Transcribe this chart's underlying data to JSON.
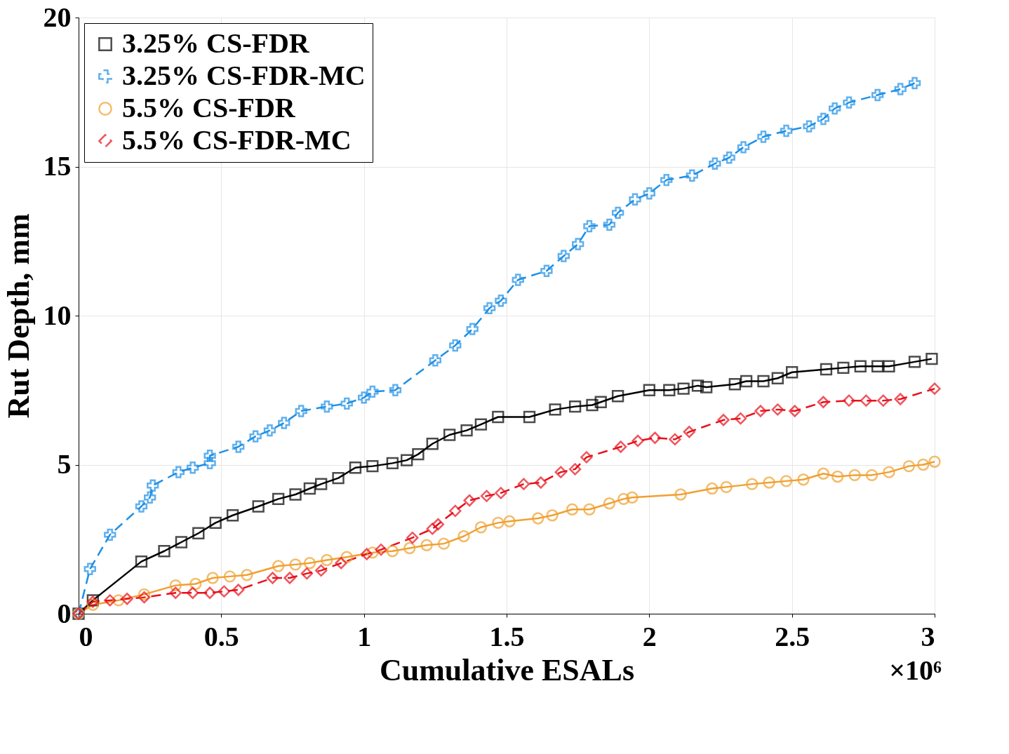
{
  "chart_data": {
    "type": "line",
    "xlabel": "Cumulative ESALs",
    "ylabel": "Rut Depth, mm",
    "annotations": [
      "×10⁶"
    ],
    "xlim": [
      0,
      3
    ],
    "ylim": [
      0,
      20
    ],
    "xticks": [
      0,
      0.5,
      1,
      1.5,
      2,
      2.5,
      3
    ],
    "yticks": [
      0,
      5,
      10,
      15,
      20
    ],
    "grid": true,
    "legend": "top left",
    "series": [
      {
        "name": "3.25% CS-FDR",
        "color": "#000000",
        "marker": "square",
        "line_style": "solid",
        "x": [
          0,
          0.05,
          0.22,
          0.3,
          0.36,
          0.42,
          0.48,
          0.54,
          0.63,
          0.7,
          0.76,
          0.81,
          0.85,
          0.91,
          0.97,
          1.03,
          1.1,
          1.15,
          1.19,
          1.24,
          1.3,
          1.36,
          1.41,
          1.47,
          1.58,
          1.67,
          1.74,
          1.8,
          1.83,
          1.89,
          2.0,
          2.07,
          2.12,
          2.17,
          2.2,
          2.3,
          2.34,
          2.4,
          2.45,
          2.5,
          2.62,
          2.68,
          2.74,
          2.8,
          2.84,
          2.93,
          2.99
        ],
        "values": [
          0,
          0.45,
          1.75,
          2.1,
          2.4,
          2.7,
          3.05,
          3.3,
          3.6,
          3.85,
          4.0,
          4.2,
          4.35,
          4.55,
          4.9,
          4.95,
          5.05,
          5.15,
          5.35,
          5.7,
          6.0,
          6.15,
          6.35,
          6.6,
          6.6,
          6.85,
          6.95,
          7.0,
          7.1,
          7.3,
          7.5,
          7.5,
          7.55,
          7.65,
          7.6,
          7.7,
          7.8,
          7.8,
          7.9,
          8.1,
          8.2,
          8.25,
          8.3,
          8.3,
          8.3,
          8.45,
          8.55
        ]
      },
      {
        "name": "3.25% CS-FDR-MC",
        "color": "#1e90e6",
        "marker": "cross",
        "line_style": "dashed",
        "x": [
          0,
          0.04,
          0.11,
          0.22,
          0.25,
          0.26,
          0.35,
          0.4,
          0.46,
          0.46,
          0.56,
          0.62,
          0.67,
          0.72,
          0.78,
          0.87,
          0.94,
          1.0,
          1.03,
          1.11,
          1.25,
          1.32,
          1.38,
          1.44,
          1.48,
          1.54,
          1.64,
          1.7,
          1.75,
          1.79,
          1.86,
          1.89,
          1.95,
          2.0,
          2.06,
          2.15,
          2.23,
          2.28,
          2.33,
          2.4,
          2.48,
          2.56,
          2.61,
          2.65,
          2.7,
          2.8,
          2.88,
          2.93
        ],
        "values": [
          0,
          1.5,
          2.65,
          3.6,
          3.9,
          4.3,
          4.75,
          4.9,
          5.05,
          5.3,
          5.6,
          5.95,
          6.15,
          6.4,
          6.8,
          6.95,
          7.05,
          7.25,
          7.45,
          7.5,
          8.5,
          9.0,
          9.55,
          10.25,
          10.5,
          11.2,
          11.5,
          12.0,
          12.4,
          13.0,
          13.05,
          13.45,
          13.9,
          14.1,
          14.55,
          14.7,
          15.1,
          15.3,
          15.65,
          16.0,
          16.2,
          16.35,
          16.6,
          16.95,
          17.15,
          17.4,
          17.6,
          17.8
        ]
      },
      {
        "name": "5.5% CS-FDR",
        "color": "#f0a030",
        "marker": "circle",
        "line_style": "solid",
        "x": [
          0,
          0.05,
          0.14,
          0.23,
          0.34,
          0.41,
          0.47,
          0.53,
          0.59,
          0.7,
          0.76,
          0.81,
          0.87,
          0.94,
          1.03,
          1.1,
          1.16,
          1.22,
          1.28,
          1.35,
          1.41,
          1.47,
          1.51,
          1.61,
          1.66,
          1.73,
          1.79,
          1.86,
          1.91,
          1.94,
          2.11,
          2.22,
          2.27,
          2.36,
          2.42,
          2.48,
          2.54,
          2.61,
          2.66,
          2.72,
          2.78,
          2.84,
          2.91,
          2.96,
          3.0
        ],
        "values": [
          0,
          0.3,
          0.45,
          0.65,
          0.95,
          1.0,
          1.2,
          1.25,
          1.3,
          1.6,
          1.65,
          1.7,
          1.8,
          1.9,
          2.05,
          2.1,
          2.2,
          2.3,
          2.35,
          2.6,
          2.9,
          3.05,
          3.1,
          3.2,
          3.3,
          3.5,
          3.5,
          3.7,
          3.85,
          3.9,
          4.0,
          4.2,
          4.25,
          4.35,
          4.4,
          4.45,
          4.5,
          4.7,
          4.6,
          4.65,
          4.65,
          4.75,
          4.95,
          5.0,
          5.1
        ]
      },
      {
        "name": "5.5% CS-FDR-MC",
        "color": "#e8101a",
        "marker": "diamond",
        "line_style": "dashed",
        "x": [
          0,
          0.05,
          0.11,
          0.17,
          0.23,
          0.34,
          0.4,
          0.46,
          0.51,
          0.56,
          0.68,
          0.74,
          0.8,
          0.85,
          0.92,
          1.01,
          1.06,
          1.17,
          1.24,
          1.26,
          1.32,
          1.37,
          1.43,
          1.48,
          1.56,
          1.62,
          1.69,
          1.74,
          1.78,
          1.9,
          1.96,
          2.02,
          2.09,
          2.14,
          2.26,
          2.32,
          2.39,
          2.45,
          2.51,
          2.61,
          2.7,
          2.76,
          2.82,
          2.88,
          3.0
        ],
        "values": [
          0,
          0.4,
          0.45,
          0.5,
          0.55,
          0.7,
          0.7,
          0.7,
          0.75,
          0.8,
          1.2,
          1.2,
          1.35,
          1.45,
          1.7,
          2.0,
          2.15,
          2.55,
          2.85,
          3.0,
          3.45,
          3.8,
          3.95,
          4.05,
          4.35,
          4.4,
          4.75,
          4.85,
          5.25,
          5.6,
          5.8,
          5.9,
          5.85,
          6.1,
          6.5,
          6.55,
          6.8,
          6.85,
          6.8,
          7.1,
          7.15,
          7.15,
          7.15,
          7.2,
          7.55
        ]
      }
    ]
  }
}
